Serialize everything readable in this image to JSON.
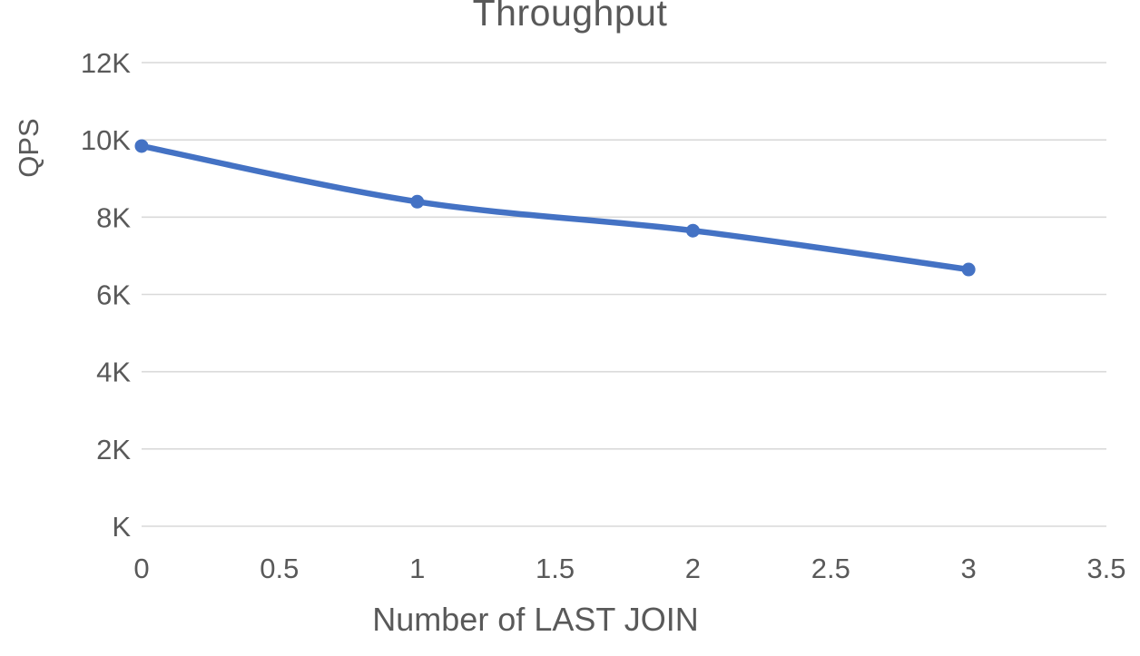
{
  "chart_data": {
    "type": "line",
    "title": "Throughput",
    "xlabel": "Number of LAST JOIN",
    "ylabel": "QPS",
    "x": [
      0,
      1,
      2,
      3
    ],
    "values": [
      9840,
      8400,
      7650,
      6645
    ],
    "xlim": [
      0,
      3.5
    ],
    "ylim": [
      0,
      12000
    ],
    "x_ticks": [
      "0",
      "0.5",
      "1",
      "1.5",
      "2",
      "2.5",
      "3",
      "3.5"
    ],
    "x_tick_values": [
      0,
      0.5,
      1,
      1.5,
      2,
      2.5,
      3,
      3.5
    ],
    "y_ticks": [
      "K",
      "2K",
      "4K",
      "6K",
      "8K",
      "10K",
      "12K"
    ],
    "y_tick_values": [
      0,
      2000,
      4000,
      6000,
      8000,
      10000,
      12000
    ],
    "grid": true,
    "legend_visible": false,
    "marker": "circle",
    "line_smooth": true,
    "colors": {
      "line": "#4472C4",
      "marker": "#4472C4",
      "grid": "#D9D9D9",
      "text": "#595959",
      "background": "#FFFFFF"
    }
  }
}
